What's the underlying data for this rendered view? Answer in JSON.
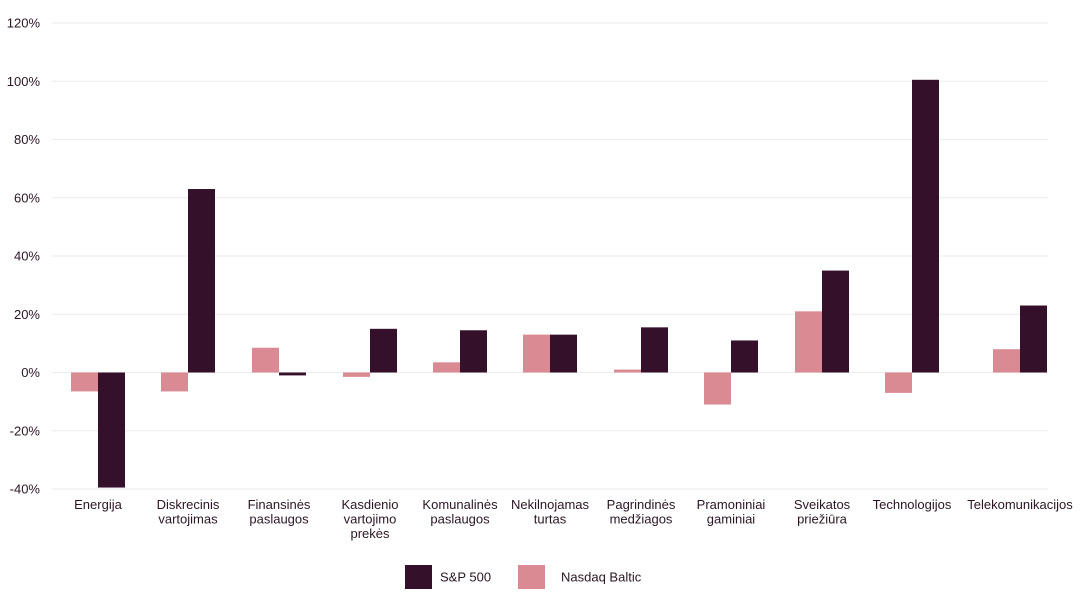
{
  "chart_data": {
    "type": "bar",
    "categories": [
      [
        "Energija"
      ],
      [
        "Diskrecinis",
        "vartojimas"
      ],
      [
        "Finansinės",
        "paslaugos"
      ],
      [
        "Kasdienio",
        "vartojimo",
        "prekės"
      ],
      [
        "Komunalinės",
        "paslaugos"
      ],
      [
        "Nekilnojamas",
        "turtas"
      ],
      [
        "Pagrindinės",
        "medžiagos"
      ],
      [
        "Pramoniniai",
        "gaminiai"
      ],
      [
        "Sveikatos",
        "priežiūra"
      ],
      [
        "Technologijos"
      ],
      [
        "Telekomunikacijos"
      ]
    ],
    "series": [
      {
        "name": "S&P 500",
        "color": "#35102b",
        "values": [
          -39.5,
          63,
          -1,
          15,
          14.5,
          13,
          15.5,
          11,
          35,
          100.5,
          23
        ]
      },
      {
        "name": "Nasdaq Baltic",
        "color": "#d98a93",
        "values": [
          -6.5,
          -6.5,
          8.5,
          -1.5,
          3.5,
          13,
          1,
          -11,
          21,
          -7,
          8
        ]
      }
    ],
    "y_ticks": [
      "120%",
      "100%",
      "80%",
      "60%",
      "40%",
      "20%",
      "0%",
      "-20%",
      "-40%"
    ],
    "ylim": [
      -40,
      120
    ],
    "grid": true,
    "legend_position": "bottom-center"
  }
}
